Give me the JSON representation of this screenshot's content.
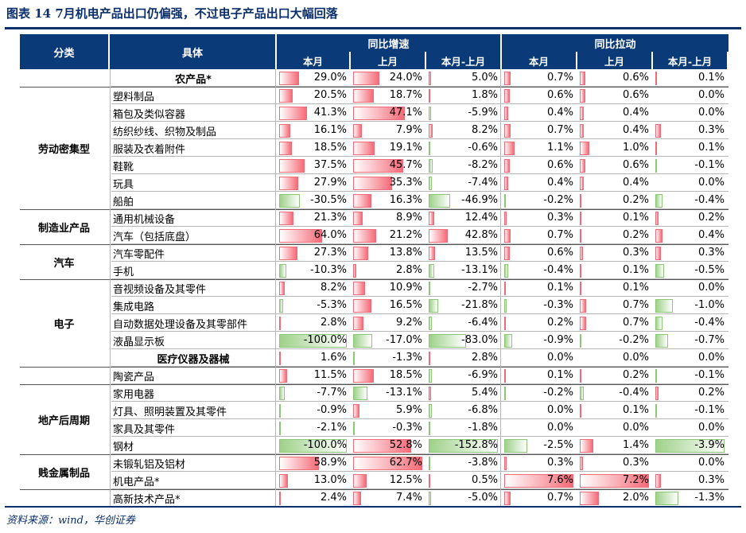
{
  "title": "图表 14    7月机电产品出口仍偏强，不过电子产品出口大幅回落",
  "source": "资料来源：wind，华创证券",
  "headers": {
    "col_category": "分类",
    "col_item": "具体",
    "group1": "同比增速",
    "group2": "同比拉动",
    "sub": [
      "本月",
      "上月",
      "本月-上月",
      "本月",
      "上月",
      "本月-上月"
    ]
  },
  "colors": {
    "header_bg": "#0b3a78",
    "positive_bar": "#f56b78",
    "negative_bar": "#9fd18a"
  },
  "categories": [
    {
      "label": "劳动密集型",
      "rows": [
        1,
        7
      ]
    },
    {
      "label": "制造业产品",
      "rows": [
        8,
        9
      ]
    },
    {
      "label": "汽车",
      "rows": [
        10,
        11
      ]
    },
    {
      "label": "电子",
      "rows": [
        12,
        16
      ]
    },
    {
      "label": "地产后周期",
      "rows": [
        18,
        21
      ]
    },
    {
      "label": "贱金属制品",
      "rows": [
        22,
        23
      ]
    }
  ],
  "rows": [
    {
      "item": "农产品*",
      "align": "center",
      "v": [
        "29.0%",
        "24.0%",
        "5.0%",
        "0.7%",
        "0.6%",
        "0.1%"
      ]
    },
    {
      "item": "塑料制品",
      "v": [
        "20.5%",
        "18.7%",
        "1.8%",
        "0.6%",
        "0.6%",
        "0.0%"
      ]
    },
    {
      "item": "箱包及类似容器",
      "v": [
        "41.3%",
        "47.1%",
        "-5.9%",
        "0.4%",
        "0.4%",
        "0.0%"
      ]
    },
    {
      "item": "纺织纱线、织物及制品",
      "v": [
        "16.1%",
        "7.9%",
        "8.2%",
        "0.7%",
        "0.4%",
        "0.3%"
      ]
    },
    {
      "item": "服装及衣着附件",
      "v": [
        "18.5%",
        "19.1%",
        "-0.6%",
        "1.1%",
        "1.0%",
        "0.1%"
      ]
    },
    {
      "item": "鞋靴",
      "v": [
        "37.5%",
        "45.7%",
        "-8.2%",
        "0.6%",
        "0.6%",
        "-0.1%"
      ]
    },
    {
      "item": "玩具",
      "v": [
        "27.9%",
        "35.3%",
        "-7.4%",
        "0.4%",
        "0.4%",
        "0.0%"
      ]
    },
    {
      "item": "船舶",
      "v": [
        "-30.5%",
        "16.3%",
        "-46.9%",
        "-0.2%",
        "0.2%",
        "-0.4%"
      ]
    },
    {
      "item": "通用机械设备",
      "v": [
        "21.3%",
        "8.9%",
        "12.4%",
        "0.3%",
        "0.1%",
        "0.2%"
      ]
    },
    {
      "item": "汽车（包括底盘）",
      "v": [
        "64.0%",
        "21.2%",
        "42.8%",
        "0.7%",
        "0.2%",
        "0.4%"
      ]
    },
    {
      "item": "汽车零配件",
      "v": [
        "27.3%",
        "13.8%",
        "13.5%",
        "0.6%",
        "0.3%",
        "0.3%"
      ]
    },
    {
      "item": "手机",
      "v": [
        "-10.3%",
        "2.8%",
        "-13.1%",
        "-0.4%",
        "0.1%",
        "-0.5%"
      ]
    },
    {
      "item": "音视频设备及其零件",
      "v": [
        "8.2%",
        "10.9%",
        "-2.7%",
        "0.1%",
        "0.1%",
        "0.0%"
      ]
    },
    {
      "item": "集成电路",
      "v": [
        "-5.3%",
        "16.5%",
        "-21.8%",
        "-0.3%",
        "0.7%",
        "-1.0%"
      ]
    },
    {
      "item": "自动数据处理设备及其零部件",
      "v": [
        "2.8%",
        "9.2%",
        "-6.4%",
        "0.2%",
        "0.7%",
        "-0.4%"
      ]
    },
    {
      "item": "液晶显示板",
      "v": [
        "-100.0%",
        "-17.0%",
        "-83.0%",
        "-0.9%",
        "-0.2%",
        "-0.7%"
      ]
    },
    {
      "item": "医疗仪器及器械",
      "align": "center",
      "v": [
        "1.6%",
        "-1.3%",
        "2.8%",
        "0.0%",
        "0.0%",
        "0.0%"
      ]
    },
    {
      "item": "陶瓷产品",
      "v": [
        "11.5%",
        "18.5%",
        "-6.9%",
        "0.1%",
        "0.2%",
        "-0.1%"
      ]
    },
    {
      "item": "家用电器",
      "v": [
        "-7.7%",
        "-13.1%",
        "5.4%",
        "-0.2%",
        "-0.4%",
        "0.2%"
      ]
    },
    {
      "item": "灯具、照明装置及其零件",
      "v": [
        "-0.9%",
        "5.9%",
        "-6.8%",
        "0.0%",
        "0.1%",
        "-0.1%"
      ]
    },
    {
      "item": "家具及其零件",
      "v": [
        "-2.1%",
        "-0.3%",
        "-1.8%",
        "0.0%",
        "0.0%",
        "0.0%"
      ]
    },
    {
      "item": "钢材",
      "v": [
        "-100.0%",
        "52.8%",
        "-152.8%",
        "-2.5%",
        "1.4%",
        "-3.9%"
      ]
    },
    {
      "item": "未锻轧铝及铝材",
      "v": [
        "58.9%",
        "62.7%",
        "-3.8%",
        "0.3%",
        "0.3%",
        "0.0%"
      ]
    },
    {
      "item": "机电产品*",
      "v": [
        "13.0%",
        "12.5%",
        "0.5%",
        "7.6%",
        "7.2%",
        "0.3%"
      ]
    },
    {
      "item": "高新技术产品*",
      "v": [
        "2.4%",
        "7.4%",
        "-5.0%",
        "0.7%",
        "2.0%",
        "-1.3%"
      ]
    }
  ]
}
